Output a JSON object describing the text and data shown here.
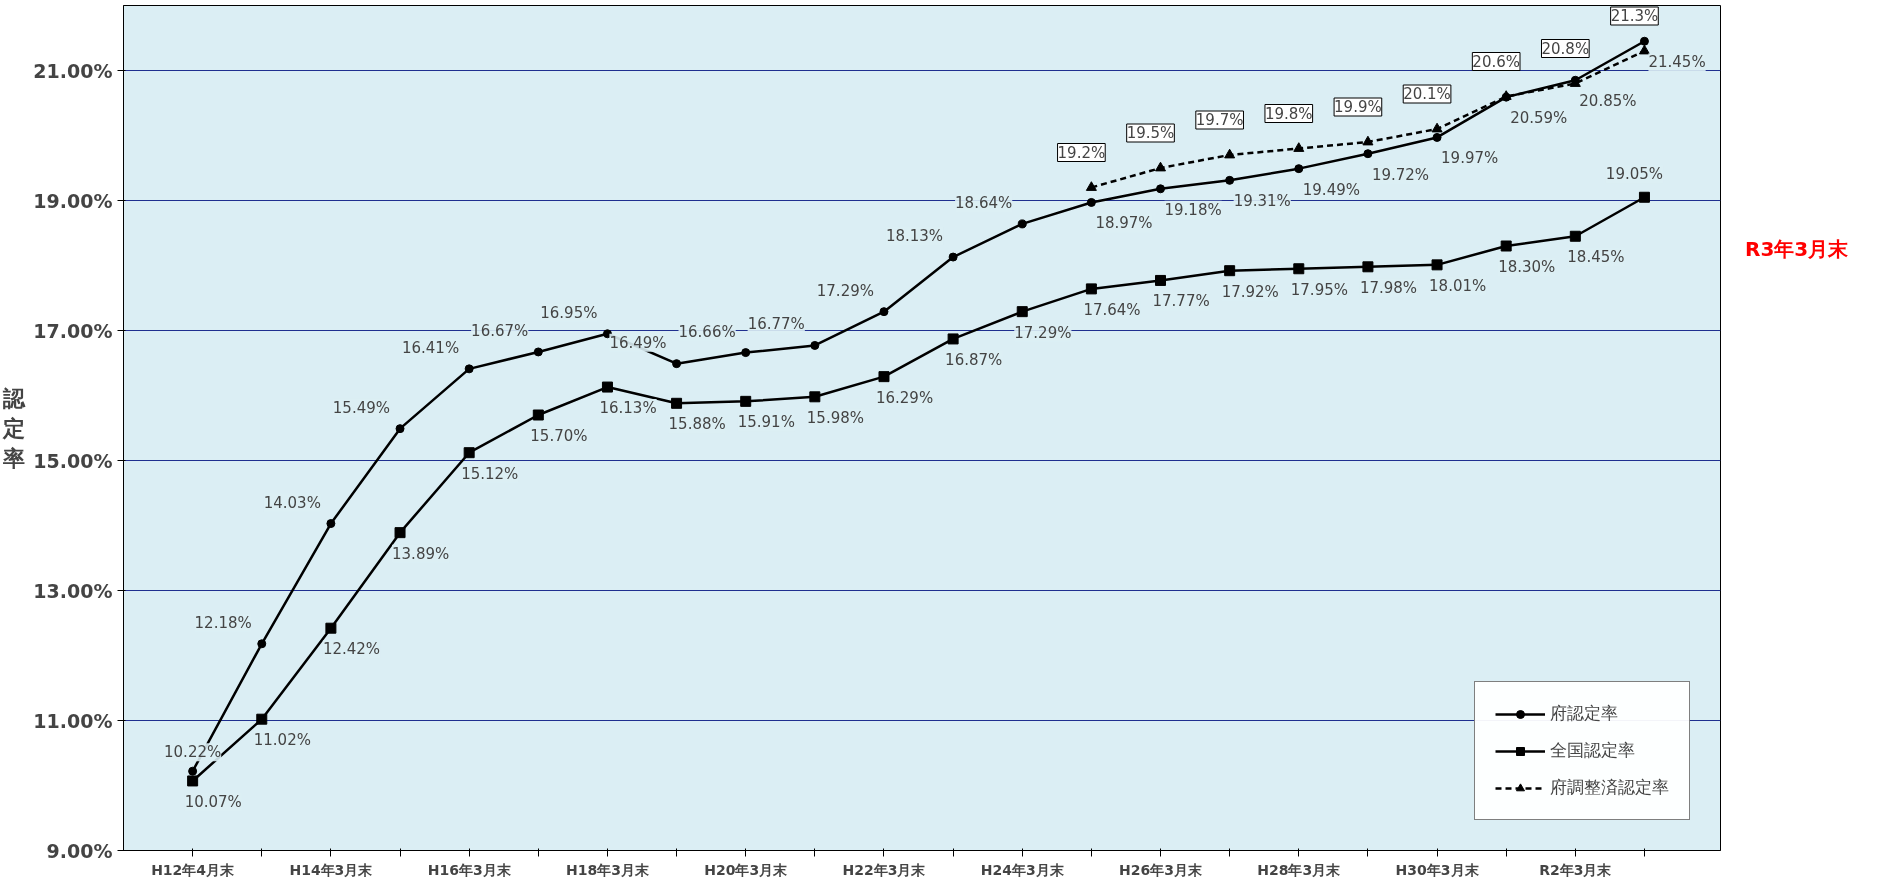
{
  "chart_data": {
    "type": "line",
    "ylabel": "認定率",
    "categories": [
      "H12年4月末",
      null,
      "H14年3月末",
      null,
      "H16年3月末",
      null,
      "H18年3月末",
      null,
      "H20年3月末",
      null,
      "H22年3月末",
      null,
      "H24年3月末",
      null,
      "H26年3月末",
      null,
      "H28年3月末",
      null,
      "H30年3月末",
      null,
      "R2年3月末",
      null
    ],
    "series": [
      {
        "name": "府認定率",
        "color": "#000000",
        "marker": "circle",
        "line_style": "solid",
        "values": [
          10.22,
          12.18,
          14.03,
          15.49,
          16.41,
          16.67,
          16.95,
          16.49,
          16.66,
          16.77,
          17.29,
          18.13,
          18.64,
          18.97,
          19.18,
          19.31,
          19.49,
          19.72,
          19.97,
          20.59,
          20.85,
          21.45
        ],
        "value_labels": [
          "10.22%",
          "12.18%",
          "14.03%",
          "15.49%",
          "16.41%",
          "16.67%",
          "16.95%",
          "16.49%",
          "16.66%",
          "16.77%",
          "17.29%",
          "18.13%",
          "18.64%",
          "18.97%",
          "19.18%",
          "19.31%",
          "19.49%",
          "19.72%",
          "19.97%",
          "20.59%",
          "20.85%",
          "21.45%"
        ]
      },
      {
        "name": "全国認定率",
        "color": "#000000",
        "marker": "square",
        "line_style": "solid",
        "values": [
          10.07,
          11.02,
          12.42,
          13.89,
          15.12,
          15.7,
          16.13,
          15.88,
          15.91,
          15.98,
          16.29,
          16.87,
          17.29,
          17.64,
          17.77,
          17.92,
          17.95,
          17.98,
          18.01,
          18.3,
          18.45,
          19.05
        ],
        "value_labels": [
          "10.07%",
          "11.02%",
          "12.42%",
          "13.89%",
          "15.12%",
          "15.70%",
          "16.13%",
          "15.88%",
          "15.91%",
          "15.98%",
          "16.29%",
          "16.87%",
          "17.29%",
          "17.64%",
          "17.77%",
          "17.92%",
          "17.95%",
          "17.98%",
          "18.01%",
          "18.30%",
          "18.45%",
          "19.05%"
        ]
      },
      {
        "name": "府調整済認定率",
        "color": "#000000",
        "marker": "triangle",
        "line_style": "dashed",
        "values": [
          null,
          null,
          null,
          null,
          null,
          null,
          null,
          null,
          null,
          null,
          null,
          null,
          null,
          19.2,
          19.5,
          19.7,
          19.8,
          19.9,
          20.1,
          20.6,
          20.8,
          21.3
        ],
        "value_labels": [
          null,
          null,
          null,
          null,
          null,
          null,
          null,
          null,
          null,
          null,
          null,
          null,
          null,
          "19.2%",
          "19.5%",
          "19.7%",
          "19.8%",
          "19.9%",
          "20.1%",
          "20.6%",
          "20.8%",
          "21.3%"
        ]
      }
    ],
    "ylim": [
      9,
      22
    ],
    "yticks": [
      {
        "value": 9,
        "label": "9.00%"
      },
      {
        "value": 11,
        "label": "11.00%"
      },
      {
        "value": 13,
        "label": "13.00%"
      },
      {
        "value": 15,
        "label": "15.00%"
      },
      {
        "value": 17,
        "label": "17.00%"
      },
      {
        "value": 19,
        "label": "19.00%"
      },
      {
        "value": 21,
        "label": "21.00%"
      }
    ],
    "grid": "y",
    "legend": "bottom right",
    "annotations": [
      "R3年3月末"
    ]
  }
}
